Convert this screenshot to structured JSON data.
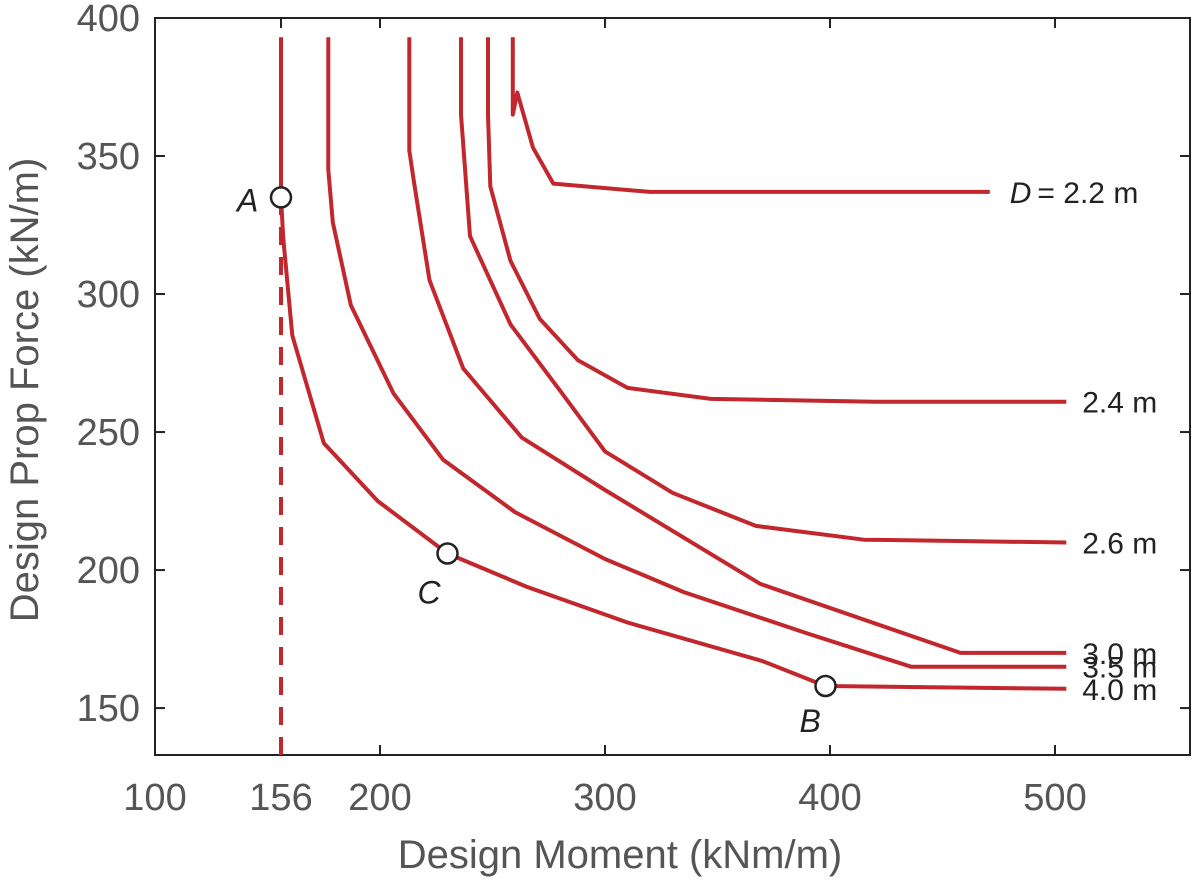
{
  "chart_data": {
    "type": "line",
    "xlabel": "Design Moment (kNm/m)",
    "ylabel": "Design Prop Force (kN/m)",
    "xlim": [
      100,
      560
    ],
    "ylim": [
      133,
      400
    ],
    "xticks": [
      "100",
      "156",
      "200",
      "300",
      "400",
      "500"
    ],
    "yticks": [
      "150",
      "200",
      "250",
      "300",
      "350",
      "400"
    ],
    "line_color": "#c1272d",
    "series": [
      {
        "name": "D = 2.2 m",
        "label_prefix": "D",
        "label_value": "= 2.2 m",
        "x": [
          259,
          259,
          261,
          268,
          277,
          320,
          471
        ],
        "y": [
          393,
          365,
          373,
          353,
          340,
          337,
          337
        ]
      },
      {
        "name": "2.4 m",
        "label": "2.4 m",
        "x": [
          248,
          248,
          249,
          258,
          271,
          288,
          310,
          347,
          420,
          505
        ],
        "y": [
          393,
          365,
          339,
          312,
          291,
          276,
          266,
          262,
          261,
          261
        ]
      },
      {
        "name": "2.6 m",
        "label": "2.6 m",
        "x": [
          236,
          236,
          240,
          258,
          280,
          300,
          330,
          367,
          415,
          505
        ],
        "y": [
          393,
          365,
          321,
          289,
          265,
          243,
          228,
          216,
          211,
          210
        ]
      },
      {
        "name": "3.0 m",
        "label": "3.0 m",
        "x": [
          213,
          213,
          215,
          222,
          237,
          263,
          300,
          369,
          458,
          505
        ],
        "y": [
          393,
          352,
          341,
          305,
          273,
          248,
          229,
          195,
          170,
          170
        ]
      },
      {
        "name": "3.5 m",
        "label": "3.5 m",
        "x": [
          177,
          177,
          179,
          187,
          206,
          228,
          260,
          300,
          335,
          390,
          436,
          505
        ],
        "y": [
          393,
          345,
          326,
          296,
          264,
          240,
          221,
          204,
          192,
          177,
          165,
          165
        ]
      },
      {
        "name": "4.0 m",
        "label": "4.0 m",
        "x": [
          156,
          156,
          157,
          161,
          175,
          199,
          230,
          265,
          310,
          370,
          398,
          505
        ],
        "y": [
          393,
          335,
          320,
          285,
          246,
          225,
          206,
          194,
          181,
          167,
          158,
          157
        ]
      }
    ],
    "reference_line": {
      "x": 156,
      "y_range": [
        133,
        335
      ],
      "style": "dashed"
    },
    "points": [
      {
        "label": "A",
        "x": 156,
        "y": 335
      },
      {
        "label": "C",
        "x": 230,
        "y": 206
      },
      {
        "label": "B",
        "x": 398,
        "y": 158
      }
    ]
  }
}
